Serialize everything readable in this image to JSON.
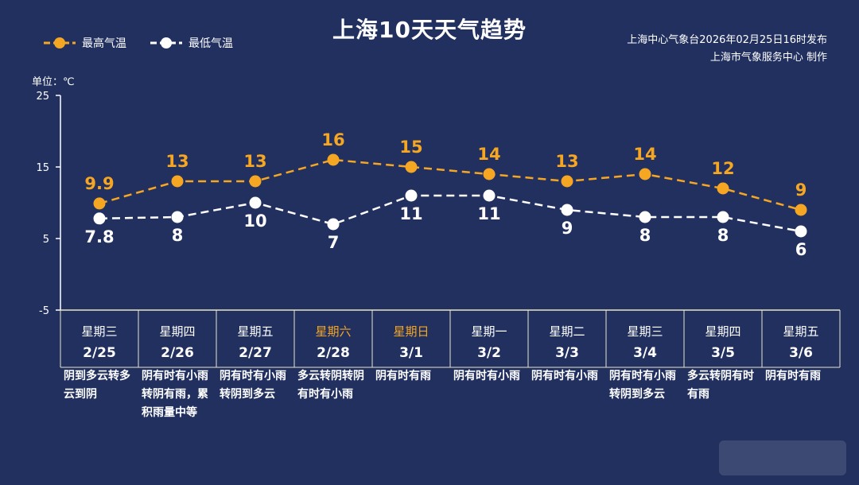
{
  "title": "上海10天天气趋势",
  "source_line1": "上海中心气象台2026年02月25日16时发布",
  "source_line2": "上海市气象服务中心 制作",
  "unit_label": "单位：℃",
  "colors": {
    "high": "#f5a623",
    "low": "#ffffff",
    "background": "#22305f"
  },
  "chart_data": {
    "type": "line",
    "y_ticks": [
      25,
      15,
      5,
      -5
    ],
    "ylim": [
      -5,
      25
    ],
    "categories": [
      "2/25",
      "2/26",
      "2/27",
      "2/28",
      "3/1",
      "3/2",
      "3/3",
      "3/4",
      "3/5",
      "3/6"
    ],
    "weekdays": [
      "星期三",
      "星期四",
      "星期五",
      "星期六",
      "星期日",
      "星期一",
      "星期二",
      "星期三",
      "星期四",
      "星期五"
    ],
    "weekend_flags": [
      false,
      false,
      false,
      true,
      true,
      false,
      false,
      false,
      false,
      false
    ],
    "series": [
      {
        "name": "最高气温",
        "values": [
          9.9,
          13,
          13,
          16,
          15,
          14,
          13,
          14,
          12,
          9
        ],
        "labels": [
          "9.9",
          "13",
          "13",
          "16",
          "15",
          "14",
          "13",
          "14",
          "12",
          "9"
        ]
      },
      {
        "name": "最低气温",
        "values": [
          7.8,
          8,
          10,
          7,
          11,
          11,
          9,
          8,
          8,
          6
        ],
        "labels": [
          "7.8",
          "8",
          "10",
          "7",
          "11",
          "11",
          "9",
          "8",
          "8",
          "6"
        ]
      }
    ],
    "weather": [
      "阴到多云转多云到阴",
      "阴有时有小雨转阴有雨，累积雨量中等",
      "阴有时有小雨转阴到多云",
      "多云转阴转阴有时有小雨",
      "阴有时有雨",
      "阴有时有小雨",
      "阴有时有小雨",
      "阴有时有小雨转阴到多云",
      "多云转阴有时有雨",
      "阴有时有雨"
    ]
  }
}
